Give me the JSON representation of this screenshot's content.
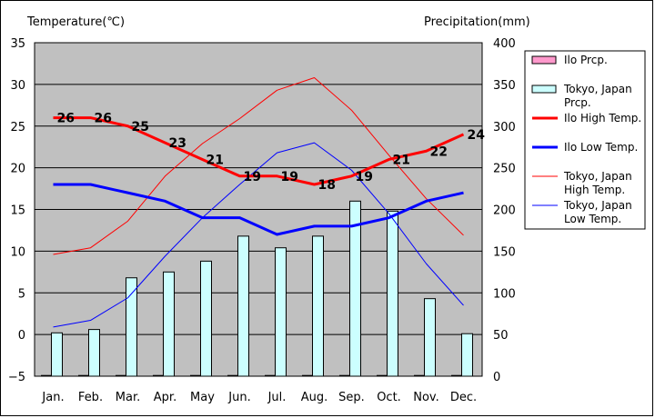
{
  "chart_data": {
    "type": "bar+line",
    "y_left_label": "Temperature(℃)",
    "y_right_label": "Precipitation(mm)",
    "y_left_range": [
      -5,
      35
    ],
    "y_left_ticks": [
      "35",
      "30",
      "25",
      "20",
      "15",
      "10",
      "5",
      "0",
      "−5"
    ],
    "y_right_range": [
      0,
      400
    ],
    "y_right_ticks": [
      "400",
      "350",
      "300",
      "250",
      "200",
      "150",
      "100",
      "50",
      "0"
    ],
    "grid": true,
    "legend_position": "right",
    "categories": [
      "Jan.",
      "Feb.",
      "Mar.",
      "Apr.",
      "May",
      "Jun.",
      "Jul.",
      "Aug.",
      "Sep.",
      "Oct.",
      "Nov.",
      "Dec."
    ],
    "bar_series": [
      {
        "name": "Ilo Prcp.",
        "color": "#ff99cc",
        "values": [
          0.5,
          0,
          0,
          0,
          0,
          0,
          0,
          0.5,
          0,
          0,
          0,
          0.5
        ]
      },
      {
        "name": "Tokyo, Japan Prcp.",
        "color": "#ccffff",
        "values": [
          52,
          56,
          118,
          125,
          138,
          168,
          154,
          168,
          210,
          198,
          93,
          51
        ]
      }
    ],
    "line_series": [
      {
        "name": "Ilo High Temp.",
        "color": "#ff0000",
        "width": 3,
        "values": [
          26,
          26,
          25,
          23,
          21,
          19,
          19,
          18,
          19,
          21,
          22,
          24
        ],
        "labels": [
          "26",
          "26",
          "25",
          "23",
          "21",
          "19",
          "19",
          "18",
          "19",
          "21",
          "22",
          "24"
        ]
      },
      {
        "name": "Ilo Low Temp.",
        "color": "#0000ff",
        "width": 3,
        "values": [
          18,
          18,
          17,
          16,
          14,
          14,
          12,
          13,
          13,
          14,
          16,
          17
        ]
      },
      {
        "name": "Tokyo, Japan High Temp.",
        "color": "#ff0000",
        "width": 1,
        "values": [
          9.6,
          10.4,
          13.6,
          19.0,
          22.9,
          25.9,
          29.3,
          30.8,
          26.9,
          21.5,
          16.3,
          11.9
        ]
      },
      {
        "name": "Tokyo, Japan Low Temp.",
        "color": "#0000ff",
        "width": 1,
        "values": [
          0.9,
          1.7,
          4.4,
          9.4,
          14.0,
          18.0,
          21.8,
          23.0,
          19.7,
          14.5,
          8.5,
          3.5
        ]
      }
    ],
    "legend_entries": [
      {
        "lines": [
          "Ilo Prcp."
        ]
      },
      {
        "lines": [
          "Tokyo, Japan",
          "Prcp."
        ]
      },
      {
        "lines": [
          "Ilo High Temp."
        ]
      },
      {
        "lines": [
          "Ilo Low Temp."
        ]
      },
      {
        "lines": [
          "Tokyo, Japan",
          "High Temp."
        ]
      },
      {
        "lines": [
          "Tokyo, Japan",
          "Low Temp."
        ]
      }
    ]
  }
}
